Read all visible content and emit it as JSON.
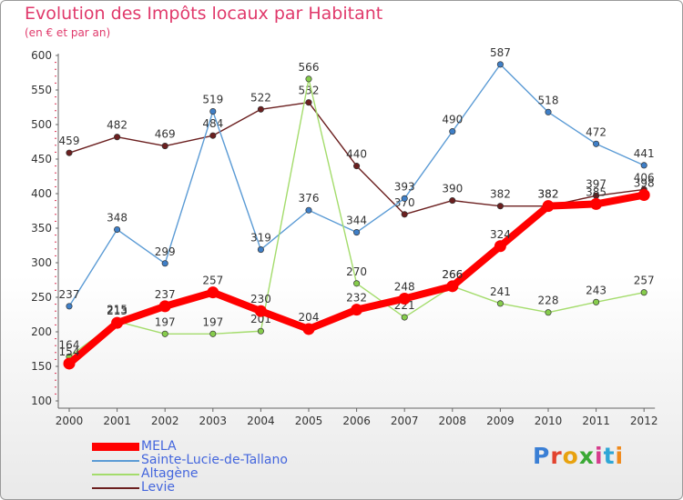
{
  "header": {
    "title": "Evolution des Impôts locaux par Habitant",
    "subtitle": "(en € et par an)"
  },
  "logo": {
    "text": "Proxiti",
    "letter_colors": [
      "#3a7fd5",
      "#e2432e",
      "#e8a20f",
      "#3aa935",
      "#d63c8c",
      "#2fa6d6",
      "#f08a1c"
    ]
  },
  "chart_data": {
    "type": "line",
    "title": "Evolution des Impôts locaux par Habitant",
    "subtitle": "(en € et par an)",
    "xlabel": "",
    "ylabel": "",
    "x": [
      "2000",
      "2001",
      "2002",
      "2003",
      "2004",
      "2005",
      "2006",
      "2007",
      "2008",
      "2009",
      "2010",
      "2011",
      "2012"
    ],
    "ylim": [
      100,
      600
    ],
    "yticks": [
      100,
      150,
      200,
      250,
      300,
      350,
      400,
      450,
      500,
      550,
      600
    ],
    "grid": false,
    "legend_position": "bottom-left",
    "series": [
      {
        "name": "Levie",
        "color": "#6b1f1f",
        "dot_color": "#6b1f1f",
        "values": [
          459,
          482,
          469,
          484,
          522,
          532,
          440,
          370,
          390,
          382,
          382,
          397,
          406
        ]
      },
      {
        "name": "Sainte-Lucie-de-Tallano",
        "color": "#5b9bd5",
        "dot_color": "#3f7fc7",
        "values": [
          237,
          348,
          299,
          519,
          319,
          376,
          344,
          393,
          490,
          587,
          518,
          472,
          441
        ]
      },
      {
        "name": "Altagène",
        "color": "#a4dc6c",
        "dot_color": "#86cc4c",
        "values": [
          164,
          215,
          197,
          197,
          201,
          566,
          270,
          221,
          266,
          241,
          228,
          243,
          257
        ]
      },
      {
        "name": "MELA",
        "color": "#ff0000",
        "dot_color": "#ff0000",
        "values": [
          154,
          213,
          237,
          257,
          230,
          204,
          232,
          248,
          266,
          324,
          382,
          385,
          398
        ]
      }
    ],
    "legend_order": [
      "MELA",
      "Sainte-Lucie-de-Tallano",
      "Altagène",
      "Levie"
    ]
  }
}
